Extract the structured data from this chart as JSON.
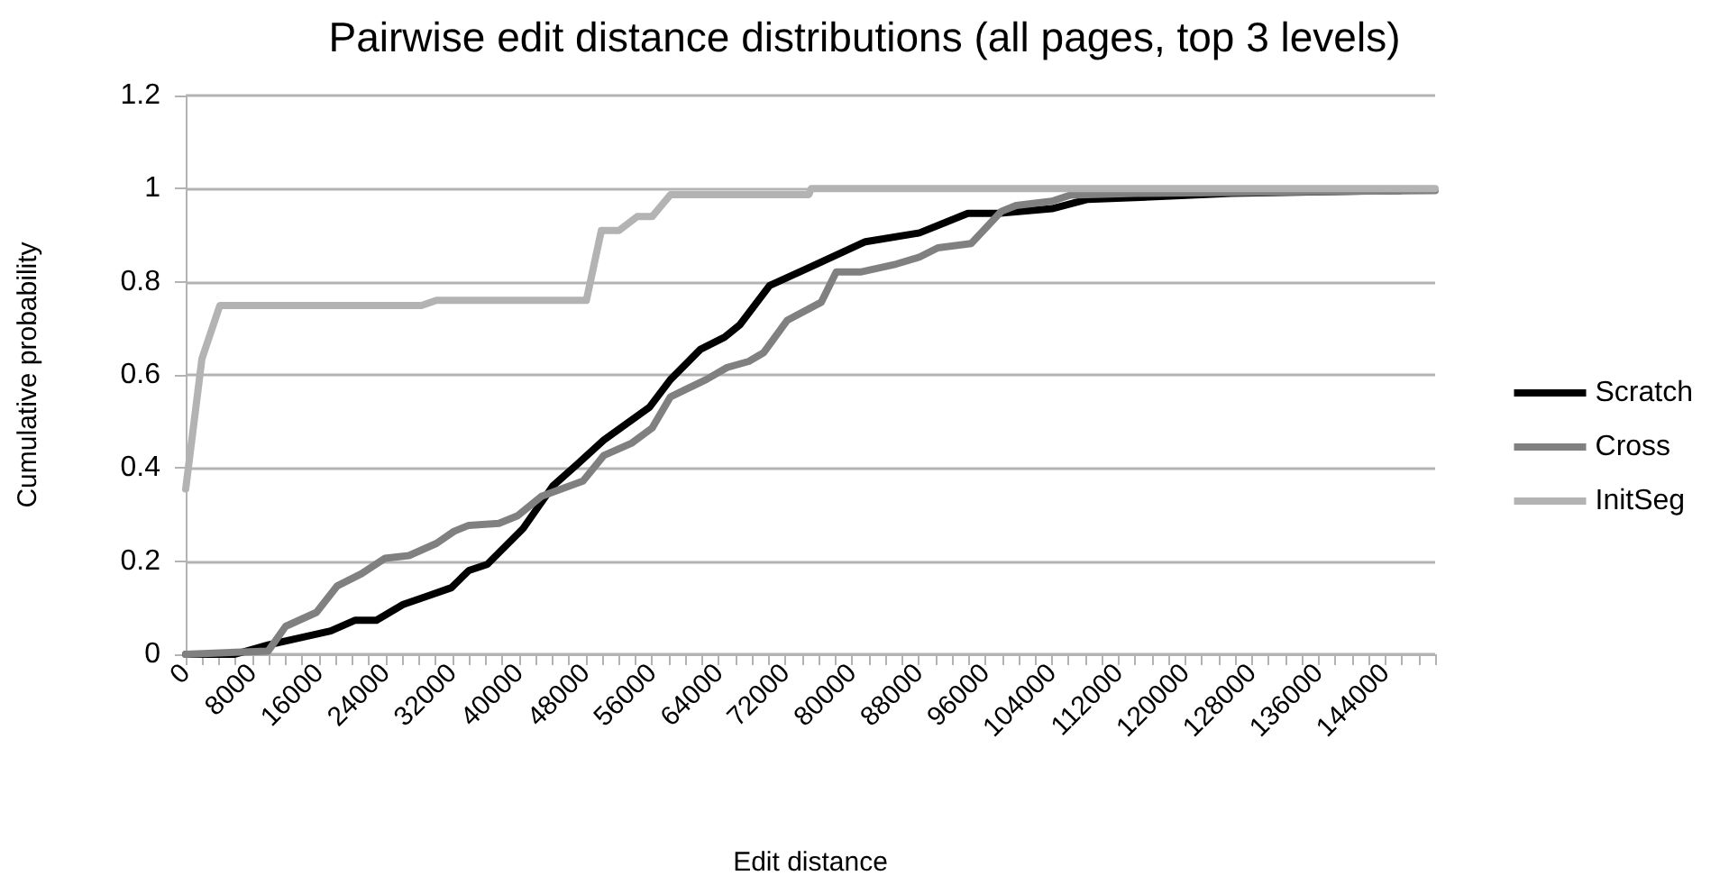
{
  "chart_data": {
    "type": "line",
    "title": "Pairwise edit distance distributions (all pages, top 3 levels)",
    "xlabel": "Edit distance",
    "ylabel": "Cumulative probability",
    "xlim": [
      0,
      150000
    ],
    "xticks": [
      0,
      {
        "value": 2000,
        "label": null
      },
      {
        "value": 4000,
        "label": null
      },
      {
        "value": 6000,
        "label": null
      },
      8000,
      {
        "value": 10000,
        "label": null
      },
      {
        "value": 12000,
        "label": null
      },
      {
        "value": 14000,
        "label": null
      },
      16000,
      {
        "value": 18000,
        "label": null
      },
      {
        "value": 20000,
        "label": null
      },
      {
        "value": 22000,
        "label": null
      },
      24000,
      {
        "value": 26000,
        "label": null
      },
      {
        "value": 28000,
        "label": null
      },
      {
        "value": 30000,
        "label": null
      },
      32000,
      {
        "value": 34000,
        "label": null
      },
      {
        "value": 36000,
        "label": null
      },
      {
        "value": 38000,
        "label": null
      },
      40000,
      {
        "value": 42000,
        "label": null
      },
      {
        "value": 44000,
        "label": null
      },
      {
        "value": 46000,
        "label": null
      },
      48000,
      {
        "value": 50000,
        "label": null
      },
      {
        "value": 52000,
        "label": null
      },
      {
        "value": 54000,
        "label": null
      },
      56000,
      {
        "value": 58000,
        "label": null
      },
      {
        "value": 60000,
        "label": null
      },
      {
        "value": 62000,
        "label": null
      },
      64000,
      {
        "value": 66000,
        "label": null
      },
      {
        "value": 68000,
        "label": null
      },
      {
        "value": 70000,
        "label": null
      },
      72000,
      {
        "value": 74000,
        "label": null
      },
      {
        "value": 76000,
        "label": null
      },
      {
        "value": 78000,
        "label": null
      },
      80000,
      {
        "value": 82000,
        "label": null
      },
      {
        "value": 84000,
        "label": null
      },
      {
        "value": 86000,
        "label": null
      },
      88000,
      {
        "value": 90000,
        "label": null
      },
      {
        "value": 92000,
        "label": null
      },
      {
        "value": 94000,
        "label": null
      },
      96000,
      {
        "value": 98000,
        "label": null
      },
      {
        "value": 100000,
        "label": null
      },
      {
        "value": 102000,
        "label": null
      },
      104000,
      {
        "value": 106000,
        "label": null
      },
      {
        "value": 108000,
        "label": null
      },
      {
        "value": 110000,
        "label": null
      },
      112000,
      {
        "value": 114000,
        "label": null
      },
      {
        "value": 116000,
        "label": null
      },
      {
        "value": 118000,
        "label": null
      },
      120000,
      {
        "value": 122000,
        "label": null
      },
      {
        "value": 124000,
        "label": null
      },
      {
        "value": 126000,
        "label": null
      },
      128000,
      {
        "value": 130000,
        "label": null
      },
      {
        "value": 132000,
        "label": null
      },
      {
        "value": 134000,
        "label": null
      },
      136000,
      {
        "value": 138000,
        "label": null
      },
      {
        "value": 140000,
        "label": null
      },
      {
        "value": 142000,
        "label": null
      },
      144000,
      {
        "value": 146000,
        "label": null
      },
      {
        "value": 148000,
        "label": null
      },
      {
        "value": 150000,
        "label": null
      }
    ],
    "ylim": [
      0,
      1.2
    ],
    "yticks": [
      0,
      0.2,
      0.4,
      0.6,
      0.8,
      1,
      1.2
    ],
    "grid": "y",
    "legend": "right",
    "marker": "none",
    "line_style": "solid",
    "series": [
      {
        "name": "Scratch",
        "color": "#000000",
        "x": [
          0,
          5900,
          9900,
          17400,
          20300,
          22900,
          26100,
          29000,
          31900,
          34000,
          36200,
          40500,
          44100,
          47000,
          50200,
          55700,
          58200,
          61800,
          64700,
          66500,
          70100,
          74800,
          81600,
          88100,
          93900,
          97500,
          104000,
          108300,
          117000,
          125600,
          145800
        ],
        "values": [
          0,
          0,
          0.02,
          0.05,
          0.073,
          0.073,
          0.107,
          0.125,
          0.143,
          0.18,
          0.193,
          0.27,
          0.362,
          0.408,
          0.46,
          0.531,
          0.59,
          0.655,
          0.681,
          0.707,
          0.792,
          0.83,
          0.886,
          0.905,
          0.947,
          0.947,
          0.957,
          0.977,
          0.983,
          0.99,
          0.996
        ]
      },
      {
        "name": "Cross",
        "color": "#808080",
        "x": [
          0,
          9900,
          12000,
          15700,
          18200,
          21100,
          23900,
          26800,
          30100,
          32200,
          34000,
          37600,
          39800,
          42700,
          47700,
          50200,
          53500,
          56000,
          58200,
          62500,
          65000,
          67600,
          69400,
          72200,
          76300,
          78100,
          81000,
          85300,
          88100,
          90300,
          94300,
          97900,
          99700,
          104000,
          106200,
          114100,
          150000
        ],
        "values": [
          0,
          0.007,
          0.06,
          0.09,
          0.147,
          0.173,
          0.206,
          0.212,
          0.238,
          0.264,
          0.277,
          0.281,
          0.297,
          0.339,
          0.372,
          0.427,
          0.453,
          0.486,
          0.553,
          0.59,
          0.616,
          0.629,
          0.648,
          0.717,
          0.756,
          0.821,
          0.821,
          0.838,
          0.853,
          0.873,
          0.882,
          0.951,
          0.964,
          0.973,
          0.986,
          0.99,
          0.996
        ]
      },
      {
        "name": "InitSeg",
        "color": "#b3b3b3",
        "x": [
          0,
          1950,
          4100,
          28300,
          30100,
          48100,
          49900,
          52000,
          54200,
          56000,
          58200,
          74800,
          75100,
          150000
        ],
        "values": [
          0.355,
          0.635,
          0.749,
          0.749,
          0.76,
          0.76,
          0.91,
          0.91,
          0.94,
          0.94,
          0.987,
          0.987,
          1,
          1
        ]
      }
    ]
  }
}
